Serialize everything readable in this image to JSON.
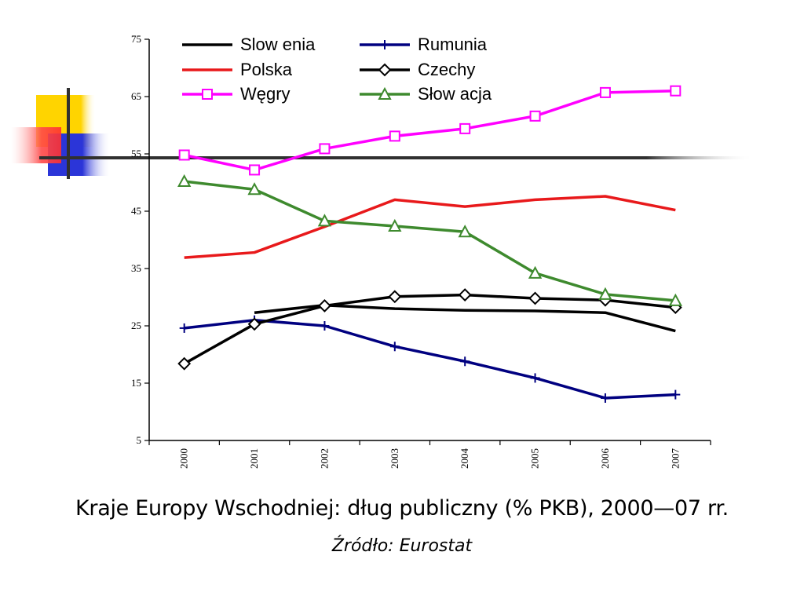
{
  "caption": "Kraje Europy Wschodniej: dług publiczny (% PKB), 2000—07 rr.",
  "source": "Źródło: Eurostat",
  "chart_data": {
    "type": "line",
    "title": "",
    "xlabel": "",
    "ylabel": "",
    "categories": [
      "2000",
      "2001",
      "2002",
      "2003",
      "2004",
      "2005",
      "2006",
      "2007"
    ],
    "ylim": [
      5,
      75
    ],
    "yticks": [
      5,
      15,
      25,
      35,
      45,
      55,
      65,
      75
    ],
    "grid": false,
    "legend_position": "top",
    "series": [
      {
        "name": "Slow enia",
        "color": "#000000",
        "marker": "none",
        "values": [
          null,
          27.3,
          28.6,
          28.0,
          27.7,
          27.6,
          27.3,
          24.1
        ]
      },
      {
        "name": "Rumunia",
        "color": "#000080",
        "marker": "plus",
        "values": [
          24.6,
          26.0,
          25.0,
          21.4,
          18.8,
          15.9,
          12.4,
          13.0
        ]
      },
      {
        "name": "Polska",
        "color": "#e8191b",
        "marker": "none",
        "values": [
          36.9,
          37.8,
          42.3,
          47.0,
          45.8,
          47.0,
          47.6,
          45.2
        ]
      },
      {
        "name": "Czechy",
        "color": "#000000",
        "marker": "diamond",
        "values": [
          18.4,
          25.3,
          28.5,
          30.1,
          30.4,
          29.8,
          29.5,
          28.2
        ]
      },
      {
        "name": "Węgry",
        "color": "#ff00ff",
        "marker": "square",
        "values": [
          54.8,
          52.2,
          55.9,
          58.1,
          59.4,
          61.6,
          65.7,
          66.0
        ]
      },
      {
        "name": "Słow acja",
        "color": "#3e8a2e",
        "marker": "triangle",
        "values": [
          50.2,
          48.8,
          43.3,
          42.4,
          41.4,
          34.2,
          30.5,
          29.4
        ]
      }
    ]
  }
}
